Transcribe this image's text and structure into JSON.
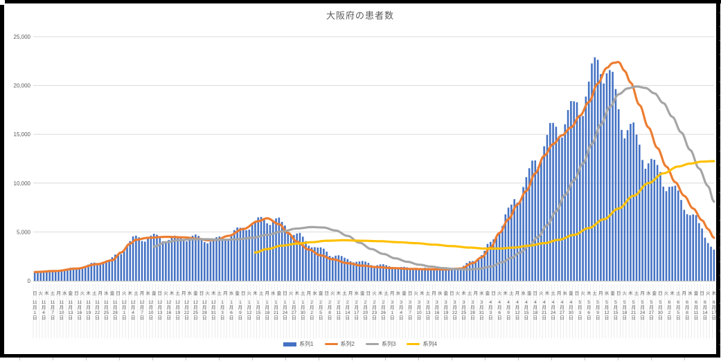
{
  "chart": {
    "title": "大阪府の患者数",
    "type": "combo-bar-line",
    "colors": {
      "bar_blue": "#4472C4",
      "line_orange": "#ED7D31",
      "line_gray": "#A5A5A5",
      "line_yellow": "#FFC000",
      "gridline": "#D9D9D9",
      "axis_text": "#595959",
      "label_stripe": "#E3E3E3",
      "sheet_border": "#000000"
    },
    "y_axis": {
      "min": 0,
      "max": 25000,
      "tick_step": 5000,
      "tick_labels": [
        "0",
        "5,000",
        "10,000",
        "15,000",
        "20,000",
        "25,000"
      ]
    },
    "x_axis": {
      "months": [
        {
          "m": 11,
          "days": 30
        },
        {
          "m": 12,
          "days": 31
        },
        {
          "m": 1,
          "days": 31
        },
        {
          "m": 2,
          "days": 28
        },
        {
          "m": 3,
          "days": 31
        },
        {
          "m": 4,
          "days": 30
        },
        {
          "m": 5,
          "days": 31
        },
        {
          "m": 6,
          "days": 17
        }
      ],
      "total_days": 229,
      "first_label": "11月1日",
      "last_label": "6月17日",
      "date_label_interval_days": 3,
      "dow_label_interval_days": 2,
      "dow_chars": [
        "日",
        "月",
        "火",
        "水",
        "木",
        "金",
        "土"
      ],
      "start_dow_index": 0,
      "month_suffix": "月",
      "day_suffix": "日"
    },
    "chart_data": {
      "type": "combo",
      "note_scale": "values in persons, y 0-25000",
      "series": [
        {
          "name": "系列1",
          "type": "bar",
          "color": "#4472C4",
          "weekly_factors": [
            1.01,
            0.92,
            0.9,
            0.97,
            1.03,
            1.07,
            1.05
          ],
          "trend_anchors": [
            [
              0,
              950
            ],
            [
              7,
              1050
            ],
            [
              14,
              1300
            ],
            [
              21,
              1800
            ],
            [
              25,
              2100
            ],
            [
              28,
              2700
            ],
            [
              31,
              3800
            ],
            [
              34,
              4400
            ],
            [
              40,
              4500
            ],
            [
              46,
              4300
            ],
            [
              52,
              4500
            ],
            [
              57,
              4300
            ],
            [
              60,
              4100
            ],
            [
              63,
              4400
            ],
            [
              68,
              5100
            ],
            [
              73,
              5900
            ],
            [
              78,
              6400
            ],
            [
              81,
              6200
            ],
            [
              84,
              5600
            ],
            [
              88,
              4700
            ],
            [
              92,
              3900
            ],
            [
              96,
              3200
            ],
            [
              100,
              2700
            ],
            [
              105,
              2200
            ],
            [
              110,
              1900
            ],
            [
              115,
              1650
            ],
            [
              120,
              1450
            ],
            [
              126,
              1300
            ],
            [
              132,
              1250
            ],
            [
              138,
              1250
            ],
            [
              143,
              1400
            ],
            [
              147,
              2000
            ],
            [
              150,
              2700
            ],
            [
              153,
              3800
            ],
            [
              156,
              5400
            ],
            [
              159,
              7000
            ],
            [
              162,
              8700
            ],
            [
              165,
              10300
            ],
            [
              168,
              12200
            ],
            [
              171,
              14200
            ],
            [
              174,
              15400
            ],
            [
              177,
              16300
            ],
            [
              180,
              17200
            ],
            [
              183,
              18400
            ],
            [
              186,
              19800
            ],
            [
              188,
              21800
            ],
            [
              190,
              23000
            ],
            [
              192,
              21900
            ],
            [
              194,
              20000
            ],
            [
              196,
              17400
            ],
            [
              198,
              16200
            ],
            [
              200,
              15600
            ],
            [
              203,
              13800
            ],
            [
              206,
              12400
            ],
            [
              209,
              11300
            ],
            [
              212,
              10200
            ],
            [
              215,
              9100
            ],
            [
              218,
              7900
            ],
            [
              221,
              6600
            ],
            [
              224,
              5300
            ],
            [
              226,
              4300
            ],
            [
              227,
              3600
            ],
            [
              228,
              3100
            ]
          ]
        },
        {
          "name": "系列2",
          "type": "line",
          "color": "#ED7D31",
          "anchors": [
            [
              0,
              900
            ],
            [
              7,
              1000
            ],
            [
              14,
              1250
            ],
            [
              21,
              1700
            ],
            [
              26,
              2100
            ],
            [
              29,
              2900
            ],
            [
              32,
              3800
            ],
            [
              34,
              4200
            ],
            [
              38,
              4400
            ],
            [
              44,
              4500
            ],
            [
              50,
              4450
            ],
            [
              55,
              4300
            ],
            [
              58,
              4150
            ],
            [
              61,
              4200
            ],
            [
              65,
              4600
            ],
            [
              70,
              5300
            ],
            [
              75,
              6100
            ],
            [
              78,
              6400
            ],
            [
              82,
              5800
            ],
            [
              85,
              4900
            ],
            [
              88,
              4000
            ],
            [
              92,
              3200
            ],
            [
              96,
              2600
            ],
            [
              100,
              2200
            ],
            [
              105,
              1800
            ],
            [
              110,
              1550
            ],
            [
              115,
              1400
            ],
            [
              120,
              1300
            ],
            [
              126,
              1220
            ],
            [
              132,
              1180
            ],
            [
              138,
              1170
            ],
            [
              143,
              1250
            ],
            [
              147,
              1800
            ],
            [
              150,
              2400
            ],
            [
              153,
              3400
            ],
            [
              156,
              4900
            ],
            [
              159,
              6300
            ],
            [
              162,
              7800
            ],
            [
              165,
              9200
            ],
            [
              168,
              11000
            ],
            [
              171,
              12800
            ],
            [
              174,
              14000
            ],
            [
              177,
              14900
            ],
            [
              180,
              15700
            ],
            [
              183,
              16900
            ],
            [
              186,
              18300
            ],
            [
              189,
              20200
            ],
            [
              192,
              21800
            ],
            [
              194,
              22300
            ],
            [
              196,
              22400
            ],
            [
              198,
              21500
            ],
            [
              200,
              20300
            ],
            [
              203,
              18000
            ],
            [
              206,
              15700
            ],
            [
              209,
              13600
            ],
            [
              212,
              11700
            ],
            [
              215,
              10100
            ],
            [
              218,
              8700
            ],
            [
              221,
              7400
            ],
            [
              224,
              6200
            ],
            [
              226,
              5300
            ],
            [
              228,
              4400
            ]
          ]
        },
        {
          "name": "系列3",
          "type": "line",
          "color": "#A5A5A5",
          "anchors": [
            [
              40,
              3500
            ],
            [
              44,
              3950
            ],
            [
              48,
              4150
            ],
            [
              53,
              4250
            ],
            [
              58,
              4250
            ],
            [
              63,
              4200
            ],
            [
              68,
              4250
            ],
            [
              73,
              4400
            ],
            [
              78,
              4700
            ],
            [
              83,
              5050
            ],
            [
              88,
              5350
            ],
            [
              93,
              5500
            ],
            [
              97,
              5450
            ],
            [
              101,
              5150
            ],
            [
              105,
              4600
            ],
            [
              109,
              3900
            ],
            [
              113,
              3250
            ],
            [
              117,
              2750
            ],
            [
              121,
              2300
            ],
            [
              125,
              1950
            ],
            [
              129,
              1650
            ],
            [
              133,
              1450
            ],
            [
              137,
              1300
            ],
            [
              141,
              1200
            ],
            [
              145,
              1150
            ],
            [
              149,
              1230
            ],
            [
              153,
              1450
            ],
            [
              157,
              1900
            ],
            [
              160,
              2350
            ],
            [
              163,
              2900
            ],
            [
              166,
              3600
            ],
            [
              169,
              4500
            ],
            [
              172,
              5700
            ],
            [
              175,
              7100
            ],
            [
              178,
              8800
            ],
            [
              181,
              10300
            ],
            [
              184,
              12000
            ],
            [
              187,
              14000
            ],
            [
              190,
              16000
            ],
            [
              193,
              17800
            ],
            [
              196,
              19100
            ],
            [
              199,
              19700
            ],
            [
              202,
              19900
            ],
            [
              205,
              19750
            ],
            [
              208,
              19200
            ],
            [
              211,
              18200
            ],
            [
              214,
              16800
            ],
            [
              217,
              15200
            ],
            [
              220,
              13400
            ],
            [
              223,
              11500
            ],
            [
              226,
              9700
            ],
            [
              228,
              8100
            ]
          ]
        },
        {
          "name": "系列4",
          "type": "line",
          "color": "#FFC000",
          "anchors": [
            [
              74,
              2900
            ],
            [
              78,
              3250
            ],
            [
              83,
              3600
            ],
            [
              88,
              3800
            ],
            [
              93,
              3950
            ],
            [
              98,
              4100
            ],
            [
              104,
              4150
            ],
            [
              110,
              4100
            ],
            [
              116,
              4050
            ],
            [
              122,
              3950
            ],
            [
              128,
              3850
            ],
            [
              134,
              3700
            ],
            [
              140,
              3550
            ],
            [
              146,
              3400
            ],
            [
              151,
              3300
            ],
            [
              156,
              3300
            ],
            [
              161,
              3400
            ],
            [
              166,
              3600
            ],
            [
              171,
              3850
            ],
            [
              176,
              4200
            ],
            [
              181,
              4700
            ],
            [
              186,
              5400
            ],
            [
              191,
              6300
            ],
            [
              196,
              7400
            ],
            [
              201,
              8700
            ],
            [
              206,
              10000
            ],
            [
              211,
              11000
            ],
            [
              216,
              11700
            ],
            [
              220,
              12000
            ],
            [
              224,
              12200
            ],
            [
              228,
              12250
            ]
          ]
        }
      ]
    },
    "legend": [
      {
        "label": "系列1",
        "marker": "bar",
        "color": "#4472C4"
      },
      {
        "label": "系列2",
        "marker": "line",
        "color": "#ED7D31"
      },
      {
        "label": "系列3",
        "marker": "line",
        "color": "#A5A5A5"
      },
      {
        "label": "系列4",
        "marker": "line",
        "color": "#FFC000"
      }
    ]
  }
}
